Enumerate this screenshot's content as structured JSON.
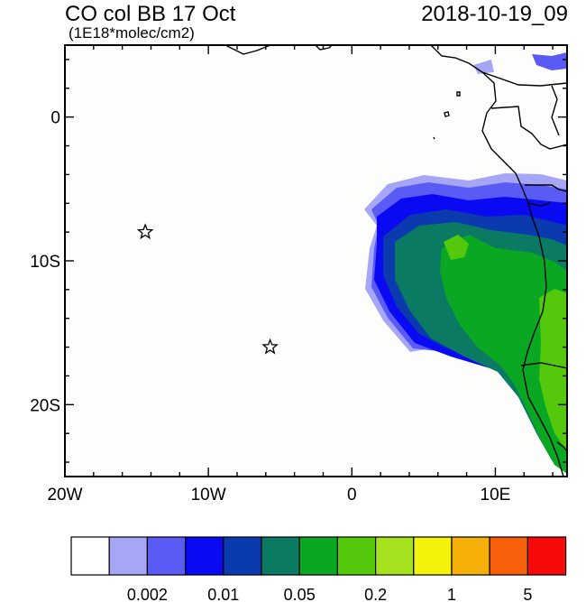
{
  "header": {
    "title": "CO col BB 17 Oct",
    "date": "2018-10-19_09",
    "units": "(1E18*molec/cm2)"
  },
  "map": {
    "lon_range": [
      -20,
      15
    ],
    "lat_range": [
      -25,
      5
    ],
    "x_ticks": [
      {
        "lon": -20,
        "label": "20W"
      },
      {
        "lon": -10,
        "label": "10W"
      },
      {
        "lon": 0,
        "label": "0"
      },
      {
        "lon": 10,
        "label": "10E"
      }
    ],
    "y_ticks": [
      {
        "lat": 0,
        "label": "0"
      },
      {
        "lat": -10,
        "label": "10S"
      },
      {
        "lat": -20,
        "label": "20S"
      }
    ],
    "markers": [
      {
        "name": "star-marker-1",
        "lon": -14.4,
        "lat": -8.0
      },
      {
        "name": "star-marker-2",
        "lon": -5.7,
        "lat": -16.0
      }
    ]
  },
  "colorbar": {
    "colors": [
      "#ffffff",
      "#a6a6f6",
      "#5a5af5",
      "#0a0af2",
      "#0a3aad",
      "#0a7a62",
      "#0aa822",
      "#54c80a",
      "#a6e11e",
      "#f2f20a",
      "#f7b00a",
      "#f7600a",
      "#f70a0a"
    ],
    "labels": [
      {
        "after_box": 2,
        "text": "0.002"
      },
      {
        "after_box": 4,
        "text": "0.01"
      },
      {
        "after_box": 6,
        "text": "0.05"
      },
      {
        "after_box": 8,
        "text": "0.2"
      },
      {
        "after_box": 10,
        "text": "1"
      },
      {
        "after_box": 12,
        "text": "5"
      }
    ]
  }
}
